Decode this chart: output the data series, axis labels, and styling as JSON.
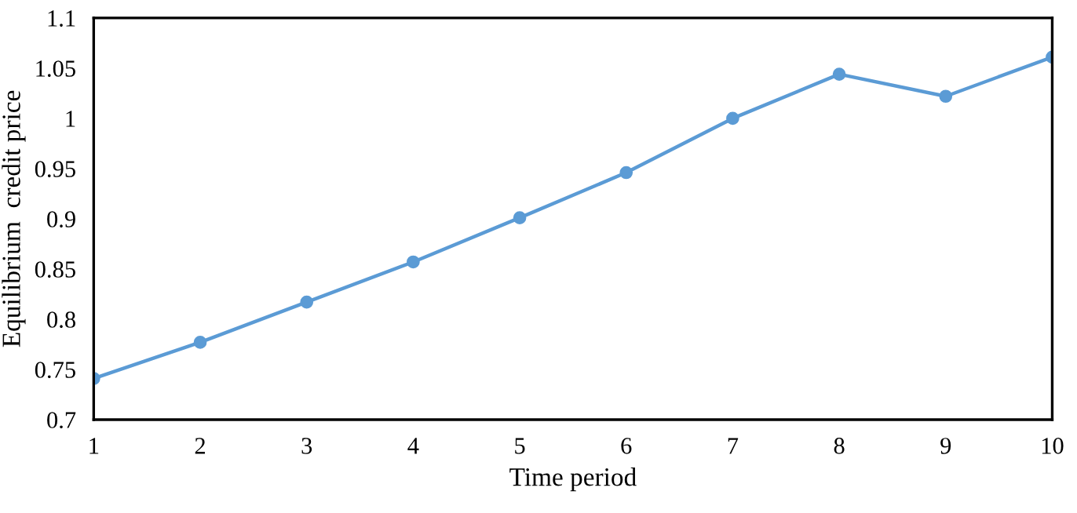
{
  "chart_data": {
    "type": "line",
    "xlabel": "Time period",
    "ylabel": "Equilibrium  credit price",
    "x": [
      1,
      2,
      3,
      4,
      5,
      6,
      7,
      8,
      9,
      10
    ],
    "series": [
      {
        "color": "#5b9bd5",
        "values": [
          0.741,
          0.777,
          0.817,
          0.857,
          0.901,
          0.946,
          1.0,
          1.044,
          1.022,
          1.061
        ]
      }
    ],
    "xlim": [
      1,
      10
    ],
    "xticks": [
      1,
      2,
      3,
      4,
      5,
      6,
      7,
      8,
      9,
      10
    ],
    "ylim": [
      0.7,
      1.1
    ],
    "yticks": [
      0.7,
      0.75,
      0.8,
      0.85,
      0.9,
      0.95,
      1,
      1.05,
      1.1
    ],
    "marker": "circle",
    "line_style": "solid",
    "grid": false,
    "legend": false
  }
}
